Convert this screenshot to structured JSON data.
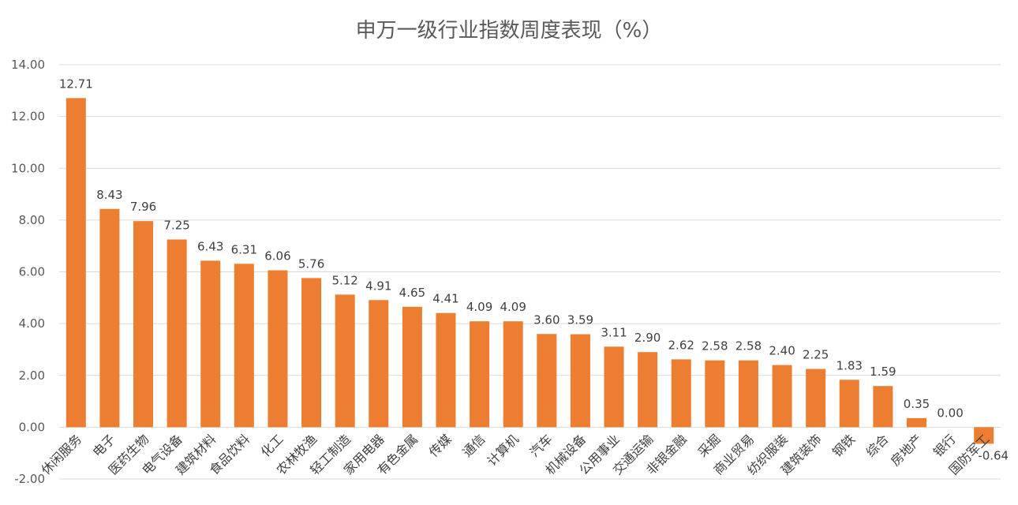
{
  "chart_data": {
    "type": "bar",
    "title": "申万一级行业指数周度表现（%）",
    "categories": [
      "休闲服务",
      "电子",
      "医药生物",
      "电气设备",
      "建筑材料",
      "食品饮料",
      "化工",
      "农林牧渔",
      "轻工制造",
      "家用电器",
      "有色金属",
      "传媒",
      "通信",
      "计算机",
      "汽车",
      "机械设备",
      "公用事业",
      "交通运输",
      "非银金融",
      "采掘",
      "商业贸易",
      "纺织服装",
      "建筑装饰",
      "钢铁",
      "综合",
      "房地产",
      "银行",
      "国防军工"
    ],
    "values": [
      12.71,
      8.43,
      7.96,
      7.25,
      6.43,
      6.31,
      6.06,
      5.76,
      5.12,
      4.91,
      4.65,
      4.41,
      4.09,
      4.09,
      3.6,
      3.59,
      3.11,
      2.9,
      2.62,
      2.58,
      2.58,
      2.4,
      2.25,
      1.83,
      1.59,
      0.35,
      0.0,
      -0.64
    ],
    "value_labels": [
      "12.71",
      "8.43",
      "7.96",
      "7.25",
      "6.43",
      "6.31",
      "6.06",
      "5.76",
      "5.12",
      "4.91",
      "4.65",
      "4.41",
      "4.09",
      "4.09",
      "3.60",
      "3.59",
      "3.11",
      "2.90",
      "2.62",
      "2.58",
      "2.58",
      "2.40",
      "2.25",
      "1.83",
      "1.59",
      "0.35",
      "0.00",
      "-0.64"
    ],
    "y_ticks": [
      "-2.00",
      "0.00",
      "2.00",
      "4.00",
      "6.00",
      "8.00",
      "10.00",
      "12.00",
      "14.00"
    ],
    "ylim": [
      -2,
      14
    ],
    "grid": true,
    "bar_color": "#ed7d31",
    "xlabel": "",
    "ylabel": ""
  }
}
